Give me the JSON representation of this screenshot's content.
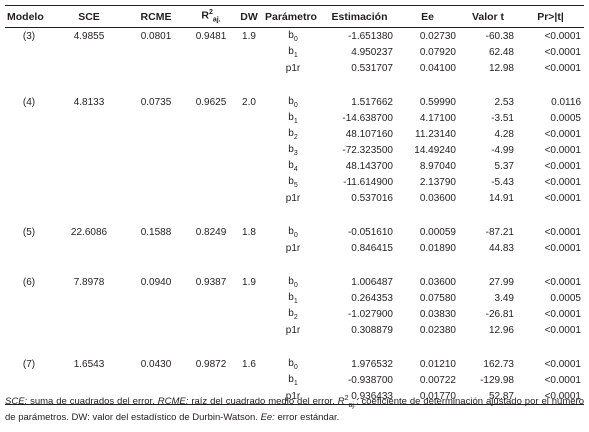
{
  "headers": {
    "modelo": "Modelo",
    "sce": "SCE",
    "rcme": "RCME",
    "r2_base": "R",
    "r2_sup": "2",
    "r2_sub": "aj.",
    "dw": "DW",
    "parametro": "Parámetro",
    "estimacion": "Estimación",
    "ee": "Ee",
    "valor_t": "Valor t",
    "pr": "Pr>|t|"
  },
  "models": [
    {
      "id": "(3)",
      "sce": "4.9855",
      "rcme": "0.0801",
      "r2": "0.9481",
      "dw": "1.9",
      "params": [
        {
          "base": "b",
          "sub": "0",
          "est": "-1.651380",
          "ee": "0.02730",
          "t": "-60.38",
          "pr": "<0.0001"
        },
        {
          "base": "b",
          "sub": "1",
          "est": "4.950237",
          "ee": "0.07920",
          "t": "62.48",
          "pr": "<0.0001"
        },
        {
          "base": "p1r",
          "sub": "",
          "est": "0.531707",
          "ee": "0.04100",
          "t": "12.98",
          "pr": "<0.0001"
        }
      ]
    },
    {
      "id": "(4)",
      "sce": "4.8133",
      "rcme": "0.0735",
      "r2": "0.9625",
      "dw": "2.0",
      "params": [
        {
          "base": "b",
          "sub": "0",
          "est": "1.517662",
          "ee": "0.59990",
          "t": "2.53",
          "pr": "0.0116"
        },
        {
          "base": "b",
          "sub": "1",
          "est": "-14.638700",
          "ee": "4.17100",
          "t": "-3.51",
          "pr": "0.0005"
        },
        {
          "base": "b",
          "sub": "2",
          "est": "48.107160",
          "ee": "11.23140",
          "t": "4.28",
          "pr": "<0.0001"
        },
        {
          "base": "b",
          "sub": "3",
          "est": "-72.323500",
          "ee": "14.49240",
          "t": "-4.99",
          "pr": "<0.0001"
        },
        {
          "base": "b",
          "sub": "4",
          "est": "48.143700",
          "ee": "8.97040",
          "t": "5.37",
          "pr": "<0.0001"
        },
        {
          "base": "b",
          "sub": "5",
          "est": "-11.614900",
          "ee": "2.13790",
          "t": "-5.43",
          "pr": "<0.0001"
        },
        {
          "base": "p1r",
          "sub": "",
          "est": "0.537016",
          "ee": "0.03600",
          "t": "14.91",
          "pr": "<0.0001"
        }
      ]
    },
    {
      "id": "(5)",
      "sce": "22.6086",
      "rcme": "0.1588",
      "r2": "0.8249",
      "dw": "1.8",
      "params": [
        {
          "base": "b",
          "sub": "0",
          "est": "-0.051610",
          "ee": "0.00059",
          "t": "-87.21",
          "pr": "<0.0001"
        },
        {
          "base": "p1r",
          "sub": "",
          "est": "0.846415",
          "ee": "0.01890",
          "t": "44.83",
          "pr": "<0.0001"
        }
      ]
    },
    {
      "id": "(6)",
      "sce": "7.8978",
      "rcme": "0.0940",
      "r2": "0.9387",
      "dw": "1.9",
      "params": [
        {
          "base": "b",
          "sub": "0",
          "est": "1.006487",
          "ee": "0.03600",
          "t": "27.99",
          "pr": "<0.0001"
        },
        {
          "base": "b",
          "sub": "1",
          "est": "0.264353",
          "ee": "0.07580",
          "t": "3.49",
          "pr": "0.0005"
        },
        {
          "base": "b",
          "sub": "2",
          "est": "-1.027900",
          "ee": "0.03830",
          "t": "-26.81",
          "pr": "<0.0001"
        },
        {
          "base": "p1r",
          "sub": "",
          "est": "0.308879",
          "ee": "0.02380",
          "t": "12.96",
          "pr": "<0.0001"
        }
      ]
    },
    {
      "id": "(7)",
      "sce": "1.6543",
      "rcme": "0.0430",
      "r2": "0.9872",
      "dw": "1.6",
      "params": [
        {
          "base": "b",
          "sub": "0",
          "est": "1.976532",
          "ee": "0.01210",
          "t": "162.73",
          "pr": "<0.0001"
        },
        {
          "base": "b",
          "sub": "1",
          "est": "-0.938700",
          "ee": "0.00722",
          "t": "-129.98",
          "pr": "<0.0001"
        },
        {
          "base": "p1r",
          "sub": "",
          "est": "0.936433",
          "ee": "0.01770",
          "t": "52.87",
          "pr": "<0.0001"
        }
      ]
    }
  ],
  "footnote": {
    "sce_abbr": "SCE:",
    "sce_text": " suma de cuadrados del error. ",
    "rcme_abbr": "RCME:",
    "rcme_text": " raíz del cuadrado medio del error. ",
    "r2_base": "R",
    "r2_sup": "2",
    "r2_sub": "aj.",
    "r2_text": ": coeficiente de determinación ajustado por el número de parámetros. DW: valor del estadístico de Durbin-Watson. ",
    "ee_abbr": "Ee:",
    "ee_text": " error estándar."
  }
}
